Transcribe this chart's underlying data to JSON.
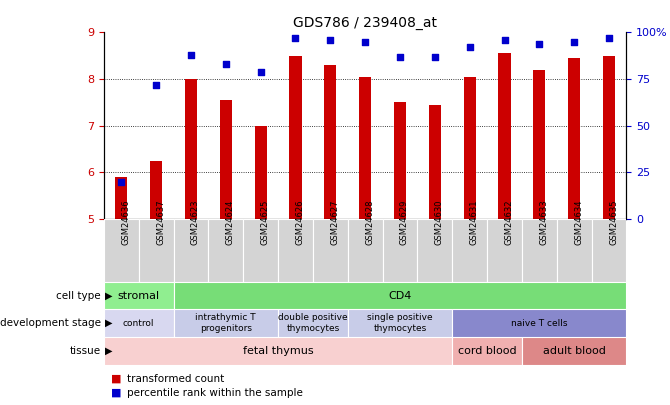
{
  "title": "GDS786 / 239408_at",
  "samples": [
    "GSM24636",
    "GSM24637",
    "GSM24623",
    "GSM24624",
    "GSM24625",
    "GSM24626",
    "GSM24627",
    "GSM24628",
    "GSM24629",
    "GSM24630",
    "GSM24631",
    "GSM24632",
    "GSM24633",
    "GSM24634",
    "GSM24635"
  ],
  "bar_values": [
    5.9,
    6.25,
    8.0,
    7.55,
    7.0,
    8.5,
    8.3,
    8.05,
    7.5,
    7.45,
    8.05,
    8.55,
    8.2,
    8.45,
    8.5
  ],
  "dot_values": [
    20,
    72,
    88,
    83,
    79,
    97,
    96,
    95,
    87,
    87,
    92,
    96,
    94,
    95,
    97
  ],
  "ylim_left": [
    5,
    9
  ],
  "yticks_left": [
    5,
    6,
    7,
    8,
    9
  ],
  "yticks_right": [
    0,
    25,
    50,
    75,
    100
  ],
  "ytick_labels_right": [
    "0",
    "25",
    "50",
    "75",
    "100%"
  ],
  "bar_color": "#cc0000",
  "dot_color": "#0000cc",
  "cell_type_segments": [
    {
      "text": "stromal",
      "start": 0,
      "end": 2,
      "color": "#90ee90"
    },
    {
      "text": "CD4",
      "start": 2,
      "end": 15,
      "color": "#77dd77"
    }
  ],
  "dev_stage_segments": [
    {
      "text": "control",
      "start": 0,
      "end": 2,
      "color": "#d8d8f0"
    },
    {
      "text": "intrathymic T\nprogenitors",
      "start": 2,
      "end": 5,
      "color": "#c8cce8"
    },
    {
      "text": "double positive\nthymocytes",
      "start": 5,
      "end": 7,
      "color": "#c8cce8"
    },
    {
      "text": "single positive\nthymocytes",
      "start": 7,
      "end": 10,
      "color": "#c8cce8"
    },
    {
      "text": "naive T cells",
      "start": 10,
      "end": 15,
      "color": "#8888cc"
    }
  ],
  "tissue_segments": [
    {
      "text": "fetal thymus",
      "start": 0,
      "end": 10,
      "color": "#f8d0d0"
    },
    {
      "text": "cord blood",
      "start": 10,
      "end": 12,
      "color": "#f0b0b0"
    },
    {
      "text": "adult blood",
      "start": 12,
      "end": 15,
      "color": "#dd8888"
    }
  ],
  "row_labels": [
    "cell type",
    "development stage",
    "tissue"
  ],
  "legend": [
    {
      "label": "transformed count",
      "color": "#cc0000"
    },
    {
      "label": "percentile rank within the sample",
      "color": "#0000cc"
    }
  ]
}
